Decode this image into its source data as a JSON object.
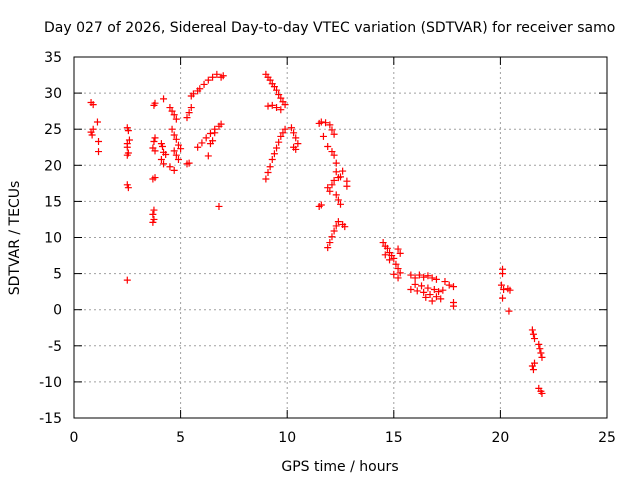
{
  "chart_data": {
    "type": "scatter",
    "title": "Day 027 of 2026, Sidereal Day-to-day VTEC variation (SDTVAR) for receiver samo",
    "xlabel": "GPS time / hours",
    "ylabel": "SDTVAR / TECUs",
    "xlim": [
      0,
      25
    ],
    "ylim": [
      -15,
      35
    ],
    "xticks": [
      "0",
      "5",
      "10",
      "15",
      "20",
      "25"
    ],
    "yticks": [
      "-15",
      "-10",
      "-5",
      "0",
      "5",
      "10",
      "15",
      "20",
      "25",
      "30",
      "35"
    ],
    "grid": true,
    "marker": "+",
    "marker_color": "#ff0000",
    "series": [
      {
        "name": "SDTVAR",
        "points": [
          [
            0.8,
            28.7
          ],
          [
            0.8,
            24.6
          ],
          [
            0.85,
            24.2
          ],
          [
            0.9,
            28.4
          ],
          [
            0.9,
            25.0
          ],
          [
            1.1,
            26.0
          ],
          [
            1.15,
            23.3
          ],
          [
            1.15,
            21.9
          ],
          [
            2.5,
            25.2
          ],
          [
            2.55,
            24.8
          ],
          [
            2.5,
            23.0
          ],
          [
            2.5,
            22.5
          ],
          [
            2.55,
            21.7
          ],
          [
            2.5,
            21.4
          ],
          [
            2.6,
            23.5
          ],
          [
            2.5,
            17.3
          ],
          [
            2.55,
            16.9
          ],
          [
            2.5,
            4.1
          ],
          [
            3.7,
            18.1
          ],
          [
            3.8,
            18.3
          ],
          [
            3.75,
            13.8
          ],
          [
            3.7,
            13.2
          ],
          [
            3.75,
            12.5
          ],
          [
            3.7,
            12.1
          ],
          [
            3.75,
            28.3
          ],
          [
            3.8,
            28.6
          ],
          [
            3.8,
            23.8
          ],
          [
            3.75,
            23.3
          ],
          [
            3.7,
            22.4
          ],
          [
            3.8,
            22.0
          ],
          [
            4.2,
            29.2
          ],
          [
            4.1,
            23.0
          ],
          [
            4.15,
            22.6
          ],
          [
            4.2,
            21.8
          ],
          [
            4.3,
            21.5
          ],
          [
            4.1,
            20.8
          ],
          [
            4.2,
            20.2
          ],
          [
            4.5,
            19.8
          ],
          [
            4.7,
            19.3
          ],
          [
            4.5,
            28.0
          ],
          [
            4.6,
            27.5
          ],
          [
            4.7,
            27.0
          ],
          [
            4.8,
            26.4
          ],
          [
            4.6,
            25.0
          ],
          [
            4.7,
            24.2
          ],
          [
            4.8,
            23.6
          ],
          [
            4.9,
            22.8
          ],
          [
            5.0,
            22.3
          ],
          [
            4.7,
            22.0
          ],
          [
            4.8,
            21.4
          ],
          [
            4.9,
            20.8
          ],
          [
            5.3,
            20.2
          ],
          [
            5.4,
            20.3
          ],
          [
            5.3,
            26.6
          ],
          [
            5.4,
            27.3
          ],
          [
            5.5,
            28.0
          ],
          [
            5.5,
            29.6
          ],
          [
            5.6,
            29.9
          ],
          [
            5.8,
            30.3
          ],
          [
            5.9,
            30.6
          ],
          [
            6.1,
            31.2
          ],
          [
            6.3,
            31.8
          ],
          [
            6.5,
            32.2
          ],
          [
            6.7,
            32.6
          ],
          [
            6.9,
            32.2
          ],
          [
            7.0,
            32.4
          ],
          [
            5.8,
            22.5
          ],
          [
            6.0,
            23.1
          ],
          [
            6.2,
            23.8
          ],
          [
            6.4,
            24.4
          ],
          [
            6.6,
            25.0
          ],
          [
            6.8,
            25.4
          ],
          [
            6.9,
            25.7
          ],
          [
            6.3,
            21.3
          ],
          [
            6.4,
            23.0
          ],
          [
            6.8,
            14.3
          ],
          [
            6.5,
            23.4
          ],
          [
            6.6,
            24.5
          ],
          [
            9.0,
            32.6
          ],
          [
            9.1,
            32.2
          ],
          [
            9.2,
            31.8
          ],
          [
            9.3,
            31.3
          ],
          [
            9.4,
            30.9
          ],
          [
            9.5,
            30.4
          ],
          [
            9.6,
            29.8
          ],
          [
            9.7,
            29.3
          ],
          [
            9.8,
            28.8
          ],
          [
            9.9,
            28.4
          ],
          [
            9.1,
            28.2
          ],
          [
            9.3,
            28.3
          ],
          [
            9.5,
            28.0
          ],
          [
            9.7,
            27.7
          ],
          [
            9.0,
            18.1
          ],
          [
            9.1,
            19.0
          ],
          [
            9.2,
            19.8
          ],
          [
            9.3,
            20.8
          ],
          [
            9.4,
            21.6
          ],
          [
            9.5,
            22.4
          ],
          [
            9.6,
            23.2
          ],
          [
            9.7,
            24.0
          ],
          [
            9.8,
            24.5
          ],
          [
            9.9,
            25.0
          ],
          [
            10.2,
            25.2
          ],
          [
            10.3,
            24.5
          ],
          [
            10.4,
            23.8
          ],
          [
            10.5,
            23.0
          ],
          [
            10.3,
            22.5
          ],
          [
            10.4,
            22.2
          ],
          [
            11.5,
            25.8
          ],
          [
            11.6,
            26.0
          ],
          [
            11.8,
            25.9
          ],
          [
            12.0,
            25.6
          ],
          [
            12.1,
            24.9
          ],
          [
            12.2,
            24.3
          ],
          [
            11.7,
            24.0
          ],
          [
            11.9,
            22.6
          ],
          [
            12.1,
            21.9
          ],
          [
            12.2,
            21.4
          ],
          [
            12.3,
            20.3
          ],
          [
            12.3,
            19.1
          ],
          [
            12.4,
            18.3
          ],
          [
            12.5,
            18.4
          ],
          [
            12.6,
            19.2
          ],
          [
            12.8,
            17.8
          ],
          [
            12.8,
            17.1
          ],
          [
            12.3,
            15.9
          ],
          [
            12.4,
            15.2
          ],
          [
            12.5,
            14.6
          ],
          [
            11.6,
            14.5
          ],
          [
            11.5,
            14.3
          ],
          [
            12.0,
            16.4
          ],
          [
            12.1,
            17.3
          ],
          [
            12.2,
            17.9
          ],
          [
            11.9,
            16.9
          ],
          [
            11.9,
            8.6
          ],
          [
            12.0,
            9.3
          ],
          [
            12.1,
            10.1
          ],
          [
            12.2,
            10.9
          ],
          [
            12.3,
            11.6
          ],
          [
            12.4,
            12.2
          ],
          [
            12.6,
            11.8
          ],
          [
            12.7,
            11.5
          ],
          [
            14.5,
            9.3
          ],
          [
            14.6,
            8.8
          ],
          [
            14.7,
            8.5
          ],
          [
            14.8,
            7.9
          ],
          [
            14.9,
            7.5
          ],
          [
            15.0,
            7.1
          ],
          [
            14.6,
            7.6
          ],
          [
            14.8,
            6.9
          ],
          [
            15.1,
            6.3
          ],
          [
            15.2,
            5.7
          ],
          [
            15.3,
            5.1
          ],
          [
            15.0,
            4.9
          ],
          [
            15.2,
            8.4
          ],
          [
            15.3,
            7.8
          ],
          [
            15.2,
            4.4
          ],
          [
            15.8,
            4.8
          ],
          [
            16.0,
            4.4
          ],
          [
            16.2,
            4.8
          ],
          [
            16.4,
            4.5
          ],
          [
            16.6,
            4.7
          ],
          [
            16.8,
            4.4
          ],
          [
            17.0,
            4.2
          ],
          [
            16.0,
            3.5
          ],
          [
            16.3,
            3.3
          ],
          [
            16.6,
            3.0
          ],
          [
            16.9,
            2.8
          ],
          [
            17.1,
            2.5
          ],
          [
            17.3,
            2.7
          ],
          [
            15.8,
            2.8
          ],
          [
            16.1,
            2.6
          ],
          [
            16.4,
            2.4
          ],
          [
            16.7,
            2.1
          ],
          [
            17.0,
            1.8
          ],
          [
            17.2,
            1.5
          ],
          [
            16.5,
            1.7
          ],
          [
            16.8,
            1.2
          ],
          [
            17.4,
            3.9
          ],
          [
            17.6,
            3.4
          ],
          [
            17.8,
            3.2
          ],
          [
            17.8,
            1.0
          ],
          [
            17.8,
            0.5
          ],
          [
            20.1,
            5.6
          ],
          [
            20.1,
            5.0
          ],
          [
            20.05,
            3.4
          ],
          [
            20.15,
            2.8
          ],
          [
            20.1,
            1.6
          ],
          [
            20.35,
            2.9
          ],
          [
            20.45,
            2.7
          ],
          [
            20.4,
            -0.2
          ],
          [
            21.5,
            -2.8
          ],
          [
            21.55,
            -3.4
          ],
          [
            21.6,
            -4.0
          ],
          [
            21.5,
            -7.8
          ],
          [
            21.55,
            -8.3
          ],
          [
            21.6,
            -7.4
          ],
          [
            21.8,
            -4.8
          ],
          [
            21.85,
            -5.4
          ],
          [
            21.9,
            -6.0
          ],
          [
            21.95,
            -6.6
          ],
          [
            21.8,
            -10.9
          ],
          [
            21.9,
            -11.3
          ],
          [
            21.95,
            -11.6
          ]
        ]
      }
    ]
  }
}
